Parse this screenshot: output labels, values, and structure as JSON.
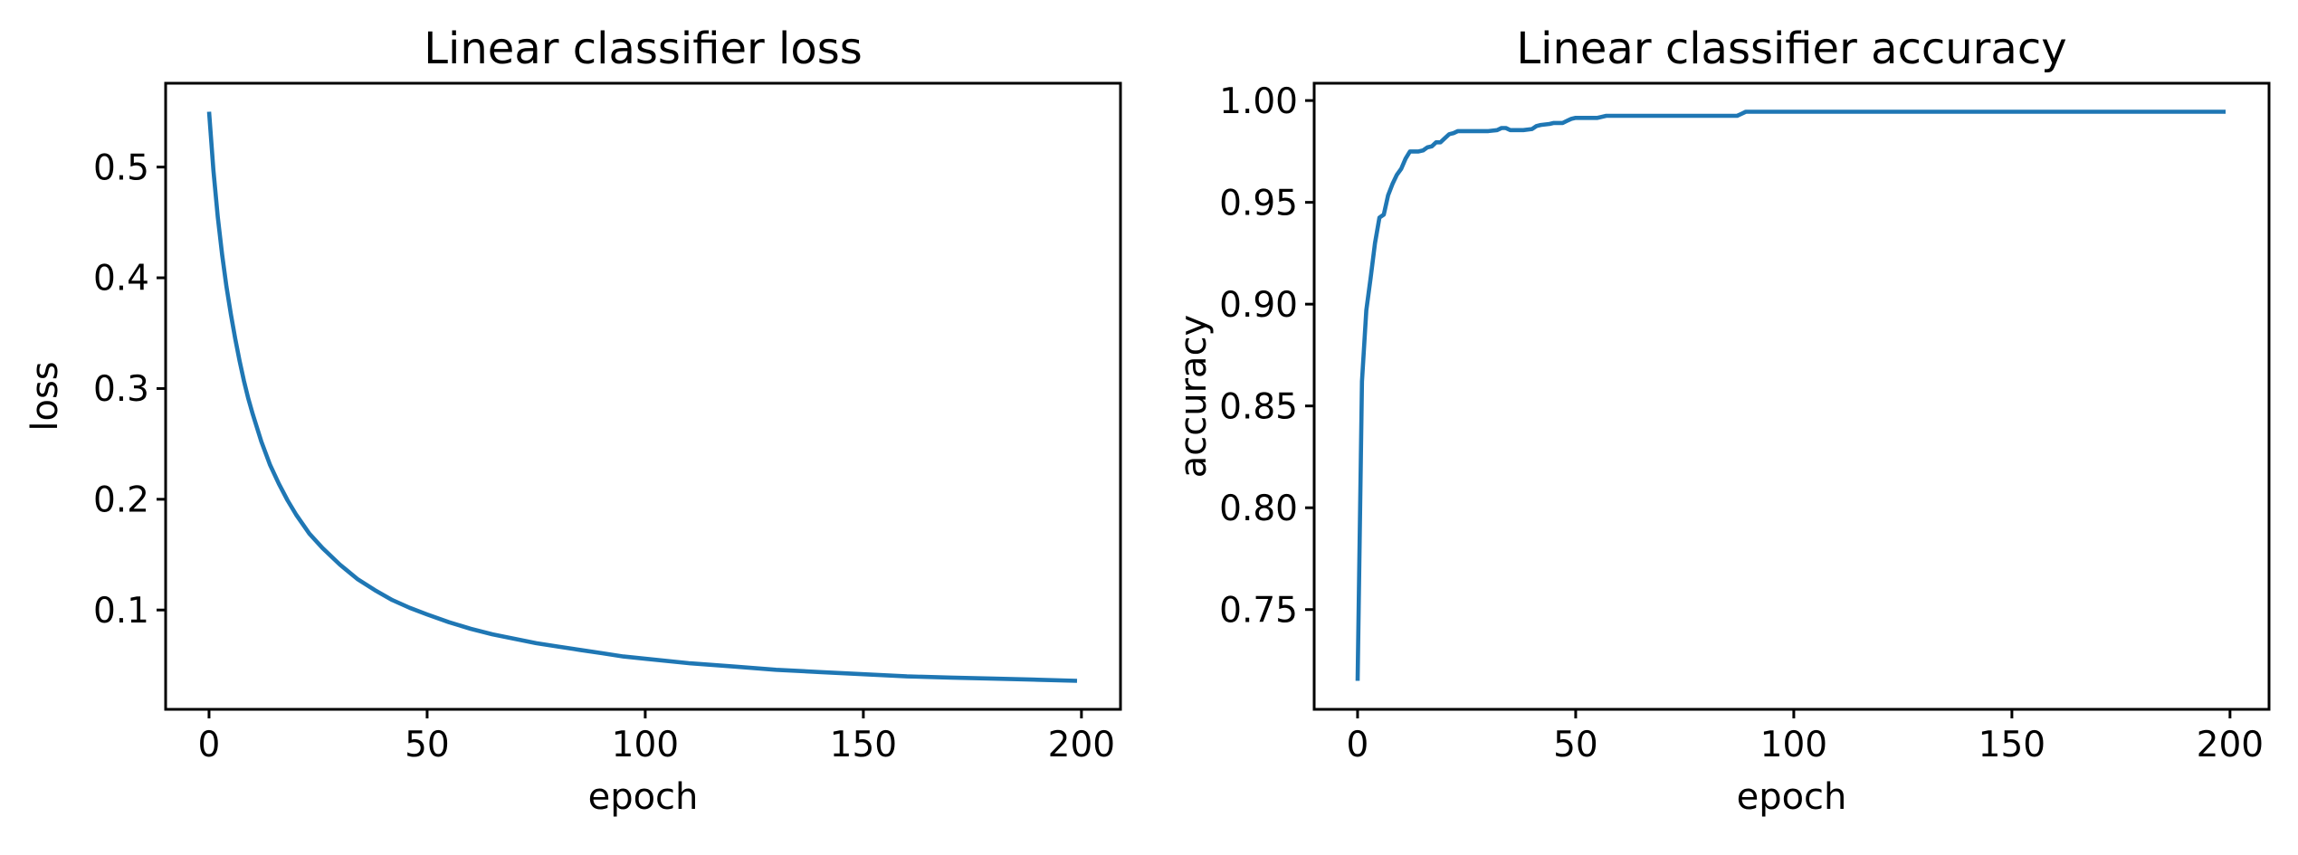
{
  "figure": {
    "background_color": "#ffffff",
    "text_color": "#000000",
    "accent_color": "#1f77b4"
  },
  "chart_data": [
    {
      "type": "line",
      "title": "Linear classifier loss",
      "xlabel": "epoch",
      "ylabel": "loss",
      "grid": false,
      "legend": null,
      "xlim": [
        -9.95,
        208.95
      ],
      "ylim": [
        0.0103,
        0.5757
      ],
      "xticks": [
        0,
        50,
        100,
        150,
        200
      ],
      "xtick_labels": [
        "0",
        "50",
        "100",
        "150",
        "200"
      ],
      "yticks": [
        0.1,
        0.2,
        0.3,
        0.4,
        0.5
      ],
      "ytick_labels": [
        "0.1",
        "0.2",
        "0.3",
        "0.4",
        "0.5"
      ],
      "series": [
        {
          "name": "loss",
          "color": "#1f77b4",
          "x": [
            0,
            1,
            2,
            3,
            4,
            5,
            6,
            7,
            8,
            9,
            10,
            12,
            14,
            16,
            18,
            20,
            23,
            26,
            30,
            34,
            38,
            42,
            46,
            50,
            55,
            60,
            65,
            70,
            75,
            80,
            85,
            90,
            95,
            100,
            110,
            120,
            130,
            140,
            150,
            160,
            170,
            180,
            190,
            199
          ],
          "y": [
            0.55,
            0.497,
            0.455,
            0.421,
            0.392,
            0.367,
            0.345,
            0.325,
            0.307,
            0.291,
            0.277,
            0.252,
            0.231,
            0.214,
            0.199,
            0.186,
            0.169,
            0.156,
            0.141,
            0.128,
            0.118,
            0.109,
            0.102,
            0.096,
            0.089,
            0.083,
            0.078,
            0.074,
            0.07,
            0.067,
            0.064,
            0.061,
            0.058,
            0.056,
            0.052,
            0.049,
            0.046,
            0.044,
            0.042,
            0.04,
            0.039,
            0.038,
            0.037,
            0.036
          ]
        }
      ]
    },
    {
      "type": "line",
      "title": "Linear classifier accuracy",
      "xlabel": "epoch",
      "ylabel": "accuracy",
      "grid": false,
      "legend": null,
      "xlim": [
        -9.95,
        208.95
      ],
      "ylim": [
        0.701,
        1.0085
      ],
      "xticks": [
        0,
        50,
        100,
        150,
        200
      ],
      "xtick_labels": [
        "0",
        "50",
        "100",
        "150",
        "200"
      ],
      "yticks": [
        0.75,
        0.8,
        0.85,
        0.9,
        0.95,
        1.0
      ],
      "ytick_labels": [
        "0.75",
        "0.80",
        "0.85",
        "0.90",
        "0.95",
        "1.00"
      ],
      "series": [
        {
          "name": "accuracy",
          "color": "#1f77b4",
          "x": [
            0,
            1,
            2,
            3,
            4,
            5,
            6,
            7,
            8,
            9,
            10,
            11,
            12,
            14,
            15,
            16,
            17,
            18,
            19,
            20,
            21,
            22,
            23,
            25,
            27,
            30,
            32,
            33,
            34,
            35,
            38,
            40,
            41,
            42,
            44,
            45,
            47,
            48,
            49,
            50,
            52,
            55,
            57,
            60,
            65,
            70,
            75,
            80,
            85,
            87,
            88,
            89,
            95,
            100,
            110,
            120,
            140,
            160,
            180,
            199
          ],
          "y": [
            0.715,
            0.862,
            0.897,
            0.913,
            0.93,
            0.9425,
            0.944,
            0.9535,
            0.959,
            0.9635,
            0.9665,
            0.9715,
            0.975,
            0.975,
            0.9755,
            0.977,
            0.9775,
            0.9795,
            0.9795,
            0.9815,
            0.9835,
            0.984,
            0.985,
            0.985,
            0.985,
            0.985,
            0.9855,
            0.9865,
            0.9865,
            0.9855,
            0.9855,
            0.986,
            0.9875,
            0.988,
            0.9885,
            0.989,
            0.989,
            0.99,
            0.991,
            0.9915,
            0.9915,
            0.9915,
            0.9925,
            0.9925,
            0.9925,
            0.9925,
            0.9925,
            0.9925,
            0.9925,
            0.9925,
            0.9935,
            0.9945,
            0.9945,
            0.9945,
            0.9945,
            0.9945,
            0.9945,
            0.9945,
            0.9945,
            0.9945
          ]
        }
      ]
    }
  ]
}
